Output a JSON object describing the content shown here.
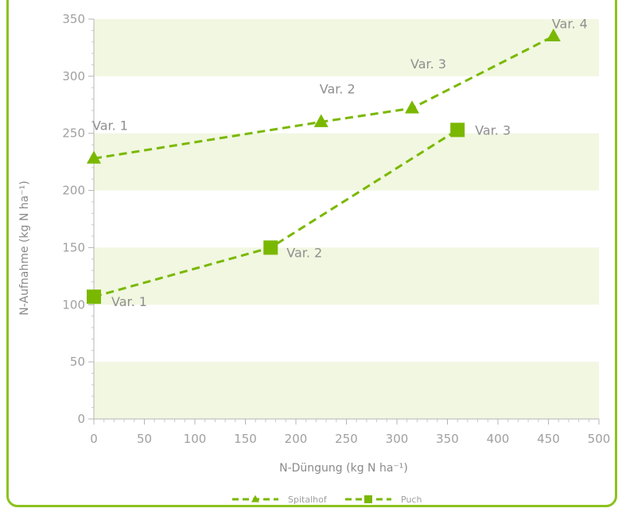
{
  "chart_data": {
    "type": "line",
    "xlabel": "N-Düngung (kg N ha⁻¹)",
    "ylabel": "N-Aufnahme (kg N ha⁻¹)",
    "xlim": [
      0,
      500
    ],
    "ylim": [
      0,
      350
    ],
    "xticks": [
      0,
      50,
      100,
      150,
      200,
      250,
      300,
      350,
      400,
      450,
      500
    ],
    "yticks": [
      0,
      50,
      100,
      150,
      200,
      250,
      300,
      350
    ],
    "grid": "alternating horizontal bands",
    "legend_position": "bottom",
    "series": [
      {
        "name": "Spitalhof",
        "marker": "triangle",
        "color": "#7ab800",
        "points": [
          {
            "x": 0,
            "y": 228,
            "label": "Var. 1"
          },
          {
            "x": 225,
            "y": 260,
            "label": "Var. 2"
          },
          {
            "x": 315,
            "y": 272,
            "label": "Var. 3"
          },
          {
            "x": 455,
            "y": 335,
            "label": "Var. 4"
          }
        ]
      },
      {
        "name": "Puch",
        "marker": "square",
        "color": "#7ab800",
        "points": [
          {
            "x": 0,
            "y": 107,
            "label": "Var. 1"
          },
          {
            "x": 175,
            "y": 150,
            "label": "Var. 2"
          },
          {
            "x": 360,
            "y": 253,
            "label": "Var. 3"
          }
        ]
      }
    ]
  }
}
